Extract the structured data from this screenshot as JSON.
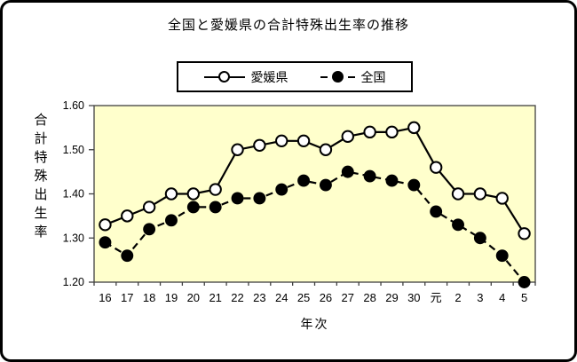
{
  "title": "全国と愛媛県の合計特殊出生率の推移",
  "legend": {
    "items": [
      {
        "label": "愛媛県",
        "marker": "open-circle",
        "line": "solid"
      },
      {
        "label": "全国",
        "marker": "filled-circle",
        "line": "dashed"
      }
    ]
  },
  "chart_data": {
    "type": "line",
    "title": "全国と愛媛県の合計特殊出生率の推移",
    "xlabel": "年次",
    "ylabel": "合計特殊出生率",
    "ylim": [
      1.2,
      1.6
    ],
    "yticks": [
      1.2,
      1.3,
      1.4,
      1.5,
      1.6
    ],
    "ytick_format_decimals": 2,
    "grid": false,
    "legend_position": "top",
    "plot_bg": "#FFFFCC",
    "line_color": "#000000",
    "categories": [
      "16",
      "17",
      "18",
      "19",
      "20",
      "21",
      "22",
      "23",
      "24",
      "25",
      "26",
      "27",
      "28",
      "29",
      "30",
      "元",
      "2",
      "3",
      "4",
      "5"
    ],
    "series": [
      {
        "name": "愛媛県",
        "line": "solid",
        "marker": "open-circle",
        "values": [
          1.33,
          1.35,
          1.37,
          1.4,
          1.4,
          1.41,
          1.5,
          1.51,
          1.52,
          1.52,
          1.5,
          1.53,
          1.54,
          1.54,
          1.55,
          1.46,
          1.4,
          1.4,
          1.39,
          1.31
        ]
      },
      {
        "name": "全国",
        "line": "dashed",
        "marker": "filled-circle",
        "values": [
          1.29,
          1.26,
          1.32,
          1.34,
          1.37,
          1.37,
          1.39,
          1.39,
          1.41,
          1.43,
          1.42,
          1.45,
          1.44,
          1.43,
          1.42,
          1.36,
          1.33,
          1.3,
          1.26,
          1.2
        ]
      }
    ]
  }
}
